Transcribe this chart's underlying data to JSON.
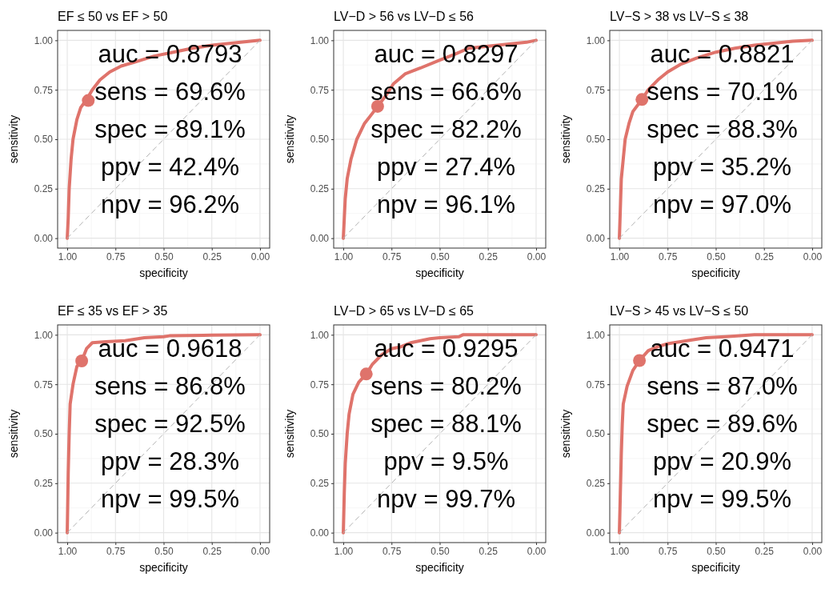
{
  "chart_data": [
    {
      "type": "line",
      "title": "EF ≤ 50 vs EF > 50",
      "xlabel": "specificity",
      "ylabel": "sensitivity",
      "xlim": [
        1.05,
        -0.05
      ],
      "ylim": [
        -0.05,
        1.05
      ],
      "xticks": [
        {
          "value": 1,
          "label": "1.00"
        },
        {
          "value": 0.75,
          "label": "0.75"
        },
        {
          "value": 0.5,
          "label": "0.50"
        },
        {
          "value": 0.25,
          "label": "0.25"
        },
        {
          "value": 0,
          "label": "0.00"
        }
      ],
      "yticks": [
        {
          "value": 0,
          "label": "0.00"
        },
        {
          "value": 0.25,
          "label": "0.25"
        },
        {
          "value": 0.5,
          "label": "0.50"
        },
        {
          "value": 0.75,
          "label": "0.75"
        },
        {
          "value": 1,
          "label": "1.00"
        }
      ],
      "grid": true,
      "annotations": [
        "auc = 0.8793",
        "sens = 69.6%",
        "spec = 89.1%",
        "ppv = 42.4%",
        "npv = 96.2%"
      ],
      "series": [
        {
          "type": "line",
          "color": "#b3b3b3",
          "line_style": "dashed",
          "x": [
            1,
            0
          ],
          "values": [
            0,
            1
          ]
        },
        {
          "type": "line",
          "color": "#df736b",
          "x": [
            1,
            0.995,
            0.99,
            0.98,
            0.97,
            0.95,
            0.93,
            0.9,
            0.87,
            0.83,
            0.78,
            0.72,
            0.65,
            0.55,
            0.45,
            0.35,
            0.25,
            0.15,
            0.05,
            0
          ],
          "values": [
            0,
            0.1,
            0.25,
            0.4,
            0.5,
            0.6,
            0.66,
            0.7,
            0.75,
            0.8,
            0.84,
            0.87,
            0.89,
            0.92,
            0.94,
            0.96,
            0.975,
            0.985,
            0.995,
            1
          ]
        },
        {
          "type": "scatter",
          "color": "#df736b",
          "marker": "circle",
          "x": [
            0.891
          ],
          "values": [
            0.696
          ]
        }
      ]
    },
    {
      "type": "line",
      "title": "LV−D > 56 vs LV−D ≤ 56",
      "xlabel": "specificity",
      "ylabel": "sensitivity",
      "xlim": [
        1.05,
        -0.05
      ],
      "ylim": [
        -0.05,
        1.05
      ],
      "xticks": [
        {
          "value": 1,
          "label": "1.00"
        },
        {
          "value": 0.75,
          "label": "0.75"
        },
        {
          "value": 0.5,
          "label": "0.50"
        },
        {
          "value": 0.25,
          "label": "0.25"
        },
        {
          "value": 0,
          "label": "0.00"
        }
      ],
      "yticks": [
        {
          "value": 0,
          "label": "0.00"
        },
        {
          "value": 0.25,
          "label": "0.25"
        },
        {
          "value": 0.5,
          "label": "0.50"
        },
        {
          "value": 0.75,
          "label": "0.75"
        },
        {
          "value": 1,
          "label": "1.00"
        }
      ],
      "grid": true,
      "annotations": [
        "auc = 0.8297",
        "sens = 66.6%",
        "spec = 82.2%",
        "ppv = 27.4%",
        "npv = 96.1%"
      ],
      "series": [
        {
          "type": "line",
          "color": "#b3b3b3",
          "line_style": "dashed",
          "x": [
            1,
            0
          ],
          "values": [
            0,
            1
          ]
        },
        {
          "type": "line",
          "color": "#df736b",
          "x": [
            1,
            0.995,
            0.99,
            0.98,
            0.96,
            0.93,
            0.89,
            0.85,
            0.822,
            0.78,
            0.74,
            0.68,
            0.6,
            0.5,
            0.42,
            0.35,
            0.25,
            0.15,
            0.05,
            0
          ],
          "values": [
            0,
            0.1,
            0.2,
            0.3,
            0.4,
            0.5,
            0.58,
            0.63,
            0.666,
            0.72,
            0.78,
            0.83,
            0.86,
            0.9,
            0.93,
            0.96,
            0.97,
            0.98,
            0.99,
            1
          ]
        },
        {
          "type": "scatter",
          "color": "#df736b",
          "marker": "circle",
          "x": [
            0.822
          ],
          "values": [
            0.666
          ]
        }
      ]
    },
    {
      "type": "line",
      "title": "LV−S > 38 vs LV−S ≤ 38",
      "xlabel": "specificity",
      "ylabel": "sensitivity",
      "xlim": [
        1.05,
        -0.05
      ],
      "ylim": [
        -0.05,
        1.05
      ],
      "xticks": [
        {
          "value": 1,
          "label": "1.00"
        },
        {
          "value": 0.75,
          "label": "0.75"
        },
        {
          "value": 0.5,
          "label": "0.50"
        },
        {
          "value": 0.25,
          "label": "0.25"
        },
        {
          "value": 0,
          "label": "0.00"
        }
      ],
      "yticks": [
        {
          "value": 0,
          "label": "0.00"
        },
        {
          "value": 0.25,
          "label": "0.25"
        },
        {
          "value": 0.5,
          "label": "0.50"
        },
        {
          "value": 0.75,
          "label": "0.75"
        },
        {
          "value": 1,
          "label": "1.00"
        }
      ],
      "grid": true,
      "annotations": [
        "auc = 0.8821",
        "sens = 70.1%",
        "spec = 88.3%",
        "ppv = 35.2%",
        "npv = 97.0%"
      ],
      "series": [
        {
          "type": "line",
          "color": "#b3b3b3",
          "line_style": "dashed",
          "x": [
            1,
            0
          ],
          "values": [
            0,
            1
          ]
        },
        {
          "type": "line",
          "color": "#df736b",
          "x": [
            1,
            0.995,
            0.99,
            0.98,
            0.97,
            0.95,
            0.93,
            0.883,
            0.85,
            0.8,
            0.75,
            0.68,
            0.6,
            0.5,
            0.4,
            0.3,
            0.2,
            0.1,
            0
          ],
          "values": [
            0,
            0.15,
            0.3,
            0.4,
            0.5,
            0.58,
            0.64,
            0.701,
            0.75,
            0.8,
            0.84,
            0.88,
            0.91,
            0.94,
            0.96,
            0.975,
            0.985,
            0.995,
            1
          ]
        },
        {
          "type": "scatter",
          "color": "#df736b",
          "marker": "circle",
          "x": [
            0.883
          ],
          "values": [
            0.701
          ]
        }
      ]
    },
    {
      "type": "line",
      "title": "EF ≤ 35 vs EF > 35",
      "xlabel": "specificity",
      "ylabel": "sensitivity",
      "xlim": [
        1.05,
        -0.05
      ],
      "ylim": [
        -0.05,
        1.05
      ],
      "xticks": [
        {
          "value": 1,
          "label": "1.00"
        },
        {
          "value": 0.75,
          "label": "0.75"
        },
        {
          "value": 0.5,
          "label": "0.50"
        },
        {
          "value": 0.25,
          "label": "0.25"
        },
        {
          "value": 0,
          "label": "0.00"
        }
      ],
      "yticks": [
        {
          "value": 0,
          "label": "0.00"
        },
        {
          "value": 0.25,
          "label": "0.25"
        },
        {
          "value": 0.5,
          "label": "0.50"
        },
        {
          "value": 0.75,
          "label": "0.75"
        },
        {
          "value": 1,
          "label": "1.00"
        }
      ],
      "grid": true,
      "annotations": [
        "auc = 0.9618",
        "sens = 86.8%",
        "spec = 92.5%",
        "ppv = 28.3%",
        "npv = 99.5%"
      ],
      "series": [
        {
          "type": "line",
          "color": "#b3b3b3",
          "line_style": "dashed",
          "x": [
            1,
            0
          ],
          "values": [
            0,
            1
          ]
        },
        {
          "type": "line",
          "color": "#df736b",
          "x": [
            1,
            0.995,
            0.99,
            0.985,
            0.97,
            0.95,
            0.925,
            0.9,
            0.87,
            0.8,
            0.7,
            0.6,
            0.5,
            0.47,
            0.25,
            0
          ],
          "values": [
            0,
            0.3,
            0.5,
            0.65,
            0.75,
            0.84,
            0.868,
            0.93,
            0.96,
            0.965,
            0.97,
            0.985,
            0.99,
            0.995,
            0.998,
            1
          ]
        },
        {
          "type": "scatter",
          "color": "#df736b",
          "marker": "circle",
          "x": [
            0.925
          ],
          "values": [
            0.868
          ]
        }
      ]
    },
    {
      "type": "line",
      "title": "LV−D > 65 vs LV−D ≤ 65",
      "xlabel": "specificity",
      "ylabel": "sensitivity",
      "xlim": [
        1.05,
        -0.05
      ],
      "ylim": [
        -0.05,
        1.05
      ],
      "xticks": [
        {
          "value": 1,
          "label": "1.00"
        },
        {
          "value": 0.75,
          "label": "0.75"
        },
        {
          "value": 0.5,
          "label": "0.50"
        },
        {
          "value": 0.25,
          "label": "0.25"
        },
        {
          "value": 0,
          "label": "0.00"
        }
      ],
      "yticks": [
        {
          "value": 0,
          "label": "0.00"
        },
        {
          "value": 0.25,
          "label": "0.25"
        },
        {
          "value": 0.5,
          "label": "0.50"
        },
        {
          "value": 0.75,
          "label": "0.75"
        },
        {
          "value": 1,
          "label": "1.00"
        }
      ],
      "grid": true,
      "annotations": [
        "auc = 0.9295",
        "sens = 80.2%",
        "spec = 88.1%",
        "ppv = 9.5%",
        "npv = 99.7%"
      ],
      "series": [
        {
          "type": "line",
          "color": "#b3b3b3",
          "line_style": "dashed",
          "x": [
            1,
            0
          ],
          "values": [
            0,
            1
          ]
        },
        {
          "type": "line",
          "color": "#df736b",
          "x": [
            1,
            0.995,
            0.99,
            0.98,
            0.97,
            0.95,
            0.92,
            0.881,
            0.85,
            0.8,
            0.75,
            0.7,
            0.65,
            0.55,
            0.5,
            0.4,
            0.38,
            0
          ],
          "values": [
            0,
            0.2,
            0.35,
            0.5,
            0.6,
            0.7,
            0.76,
            0.802,
            0.85,
            0.9,
            0.93,
            0.94,
            0.96,
            0.98,
            0.985,
            0.99,
            1,
            1
          ]
        },
        {
          "type": "scatter",
          "color": "#df736b",
          "marker": "circle",
          "x": [
            0.881
          ],
          "values": [
            0.802
          ]
        }
      ]
    },
    {
      "type": "line",
      "title": "LV−S > 45 vs LV−S ≤ 50",
      "xlabel": "specificity",
      "ylabel": "sensitivity",
      "xlim": [
        1.05,
        -0.05
      ],
      "ylim": [
        -0.05,
        1.05
      ],
      "xticks": [
        {
          "value": 1,
          "label": "1.00"
        },
        {
          "value": 0.75,
          "label": "0.75"
        },
        {
          "value": 0.5,
          "label": "0.50"
        },
        {
          "value": 0.25,
          "label": "0.25"
        },
        {
          "value": 0,
          "label": "0.00"
        }
      ],
      "yticks": [
        {
          "value": 0,
          "label": "0.00"
        },
        {
          "value": 0.25,
          "label": "0.25"
        },
        {
          "value": 0.5,
          "label": "0.50"
        },
        {
          "value": 0.75,
          "label": "0.75"
        },
        {
          "value": 1,
          "label": "1.00"
        }
      ],
      "grid": true,
      "annotations": [
        "auc = 0.9471",
        "sens = 87.0%",
        "spec = 89.6%",
        "ppv = 20.9%",
        "npv = 99.5%"
      ],
      "series": [
        {
          "type": "line",
          "color": "#b3b3b3",
          "line_style": "dashed",
          "x": [
            1,
            0
          ],
          "values": [
            0,
            1
          ]
        },
        {
          "type": "line",
          "color": "#df736b",
          "x": [
            1,
            0.995,
            0.99,
            0.985,
            0.98,
            0.96,
            0.93,
            0.896,
            0.85,
            0.8,
            0.75,
            0.65,
            0.55,
            0.45,
            0.3,
            0
          ],
          "values": [
            0,
            0.2,
            0.4,
            0.55,
            0.65,
            0.74,
            0.82,
            0.87,
            0.92,
            0.94,
            0.955,
            0.97,
            0.985,
            0.99,
            1,
            1
          ]
        },
        {
          "type": "scatter",
          "color": "#df736b",
          "marker": "circle",
          "x": [
            0.896
          ],
          "values": [
            0.87
          ]
        }
      ]
    }
  ]
}
